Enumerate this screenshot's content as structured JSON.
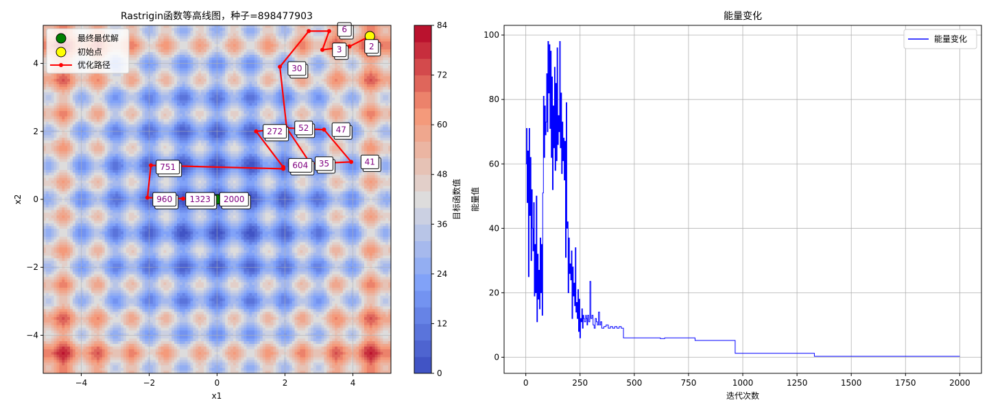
{
  "colors": {
    "path": "#ff0000",
    "best": "#008000",
    "start": "#ffff00",
    "energy": "#0000ff",
    "label_text": "#800080",
    "grid": "#b0b0b0"
  },
  "chart_data": [
    {
      "type": "contour",
      "title": "Rastrigin函数等高线图，种子=898477903",
      "xlabel": "x1",
      "ylabel": "x2",
      "xlim": [
        -5.12,
        5.12
      ],
      "ylim": [
        -5.12,
        5.12
      ],
      "xticks": [
        -4,
        -2,
        0,
        2,
        4
      ],
      "yticks": [
        -4,
        -2,
        0,
        2,
        4
      ],
      "xtick_labels": [
        "−4",
        "−2",
        "0",
        "2",
        "4"
      ],
      "ytick_labels": [
        "−4",
        "−2",
        "0",
        "2",
        "4"
      ],
      "colorbar": {
        "label": "目标函数值",
        "range": [
          0,
          84
        ],
        "ticks": [
          0,
          12,
          24,
          36,
          48,
          60,
          72,
          84
        ],
        "tick_labels": [
          "0",
          "12",
          "24",
          "36",
          "48",
          "60",
          "72",
          "84"
        ],
        "levels": 21,
        "colormap": "coolwarm"
      },
      "legend": {
        "placement": "top-left",
        "entries": [
          {
            "label": "最终最优解",
            "marker": "green-circle"
          },
          {
            "label": "初始点",
            "marker": "yellow-circle"
          },
          {
            "label": "优化路径",
            "marker": "red-line-dot"
          }
        ]
      },
      "initial_point": {
        "x": 4.5,
        "y": 4.8
      },
      "best_point": {
        "x": 0.0,
        "y": 0.0
      },
      "path": [
        {
          "x": 4.5,
          "y": 4.8
        },
        {
          "x": 3.9,
          "y": 4.5
        },
        {
          "x": 3.1,
          "y": 4.4
        },
        {
          "x": 3.3,
          "y": 4.95
        },
        {
          "x": 2.7,
          "y": 4.95
        },
        {
          "x": 1.85,
          "y": 3.9
        },
        {
          "x": 2.05,
          "y": 2.1
        },
        {
          "x": 3.15,
          "y": 2.05
        },
        {
          "x": 3.95,
          "y": 1.1
        },
        {
          "x": 2.75,
          "y": 1.05
        },
        {
          "x": 2.05,
          "y": 2.1
        },
        {
          "x": 1.15,
          "y": 2.0
        },
        {
          "x": 1.95,
          "y": 0.95
        },
        {
          "x": 1.95,
          "y": 0.9
        },
        {
          "x": -1.95,
          "y": 1.0
        },
        {
          "x": -2.05,
          "y": 0.05
        },
        {
          "x": -1.0,
          "y": 0.02
        },
        {
          "x": 0.0,
          "y": 0.0
        }
      ],
      "annotations": [
        {
          "text": "2",
          "x": 4.55,
          "y": 4.5
        },
        {
          "text": "3",
          "x": 3.6,
          "y": 4.4
        },
        {
          "text": "6",
          "x": 3.75,
          "y": 5.0
        },
        {
          "text": "30",
          "x": 2.35,
          "y": 3.85
        },
        {
          "text": "47",
          "x": 3.65,
          "y": 2.05
        },
        {
          "text": "52",
          "x": 2.55,
          "y": 2.1
        },
        {
          "text": "272",
          "x": 1.7,
          "y": 2.0
        },
        {
          "text": "41",
          "x": 4.5,
          "y": 1.1
        },
        {
          "text": "35",
          "x": 3.15,
          "y": 1.05
        },
        {
          "text": "604",
          "x": 2.45,
          "y": 1.0
        },
        {
          "text": "751",
          "x": -1.45,
          "y": 0.95
        },
        {
          "text": "960",
          "x": -1.55,
          "y": 0.0
        },
        {
          "text": "1323",
          "x": -0.5,
          "y": 0.0
        },
        {
          "text": "2000",
          "x": 0.5,
          "y": 0.0
        }
      ]
    },
    {
      "type": "line",
      "title": "能量变化",
      "xlabel": "迭代次数",
      "ylabel": "能量值",
      "xlim": [
        -100,
        2100
      ],
      "ylim": [
        -5,
        103
      ],
      "xticks": [
        0,
        250,
        500,
        750,
        1000,
        1250,
        1500,
        1750,
        2000
      ],
      "yticks": [
        0,
        20,
        40,
        60,
        80,
        100
      ],
      "xtick_labels": [
        "0",
        "250",
        "500",
        "750",
        "1000",
        "1250",
        "1500",
        "1750",
        "2000"
      ],
      "ytick_labels": [
        "0",
        "20",
        "40",
        "60",
        "80",
        "100"
      ],
      "legend": {
        "placement": "top-right",
        "entries": [
          {
            "label": "能量变化"
          }
        ]
      },
      "grid": true,
      "series": [
        {
          "name": "能量变化",
          "x": [
            0,
            3,
            6,
            9,
            12,
            15,
            18,
            21,
            24,
            27,
            30,
            33,
            36,
            39,
            42,
            45,
            48,
            51,
            54,
            57,
            60,
            63,
            66,
            69,
            72,
            75,
            78,
            81,
            84,
            87,
            90,
            93,
            96,
            99,
            102,
            105,
            108,
            111,
            114,
            117,
            120,
            123,
            126,
            129,
            132,
            135,
            138,
            141,
            144,
            147,
            150,
            153,
            156,
            159,
            162,
            165,
            168,
            171,
            174,
            177,
            180,
            183,
            186,
            189,
            192,
            195,
            198,
            201,
            204,
            207,
            210,
            213,
            216,
            219,
            222,
            225,
            228,
            231,
            234,
            237,
            240,
            243,
            246,
            249,
            252,
            255,
            258,
            261,
            264,
            267,
            270,
            273,
            276,
            279,
            282,
            285,
            290,
            295,
            300,
            305,
            310,
            315,
            320,
            325,
            330,
            335,
            340,
            345,
            350,
            360,
            370,
            380,
            390,
            400,
            410,
            420,
            430,
            440,
            450,
            460,
            470,
            500,
            620,
            640,
            760,
            780,
            960,
            965,
            1320,
            1330,
            2000
          ],
          "y": [
            60,
            71,
            48,
            64,
            25,
            71,
            44,
            62,
            30,
            52,
            40,
            33,
            48,
            19,
            35,
            20,
            50,
            11,
            32,
            18,
            27,
            15,
            37,
            20,
            35,
            13,
            51,
            81,
            62,
            78,
            69,
            73,
            88,
            70,
            98,
            82,
            97,
            71,
            95,
            62,
            87,
            52,
            78,
            65,
            90,
            58,
            85,
            61,
            96,
            66,
            75,
            70,
            98,
            65,
            82,
            57,
            73,
            61,
            68,
            55,
            67,
            31,
            79,
            40,
            42,
            20,
            37,
            26,
            29,
            24,
            33,
            12,
            28,
            19,
            23,
            16,
            34,
            14,
            17,
            12,
            21,
            8,
            18,
            6,
            12,
            11,
            15,
            9,
            13,
            12,
            11,
            11,
            13,
            12,
            10,
            13,
            11,
            23.5,
            12,
            13,
            10,
            9,
            12,
            11,
            10,
            14,
            10,
            11,
            9,
            9.5,
            10,
            9,
            9.5,
            9,
            9.5,
            9,
            9.5,
            9,
            6,
            6,
            6,
            6,
            5.8,
            6,
            6,
            5.2,
            5.2,
            1.2,
            1.2,
            0.3,
            0.3
          ]
        }
      ]
    }
  ]
}
